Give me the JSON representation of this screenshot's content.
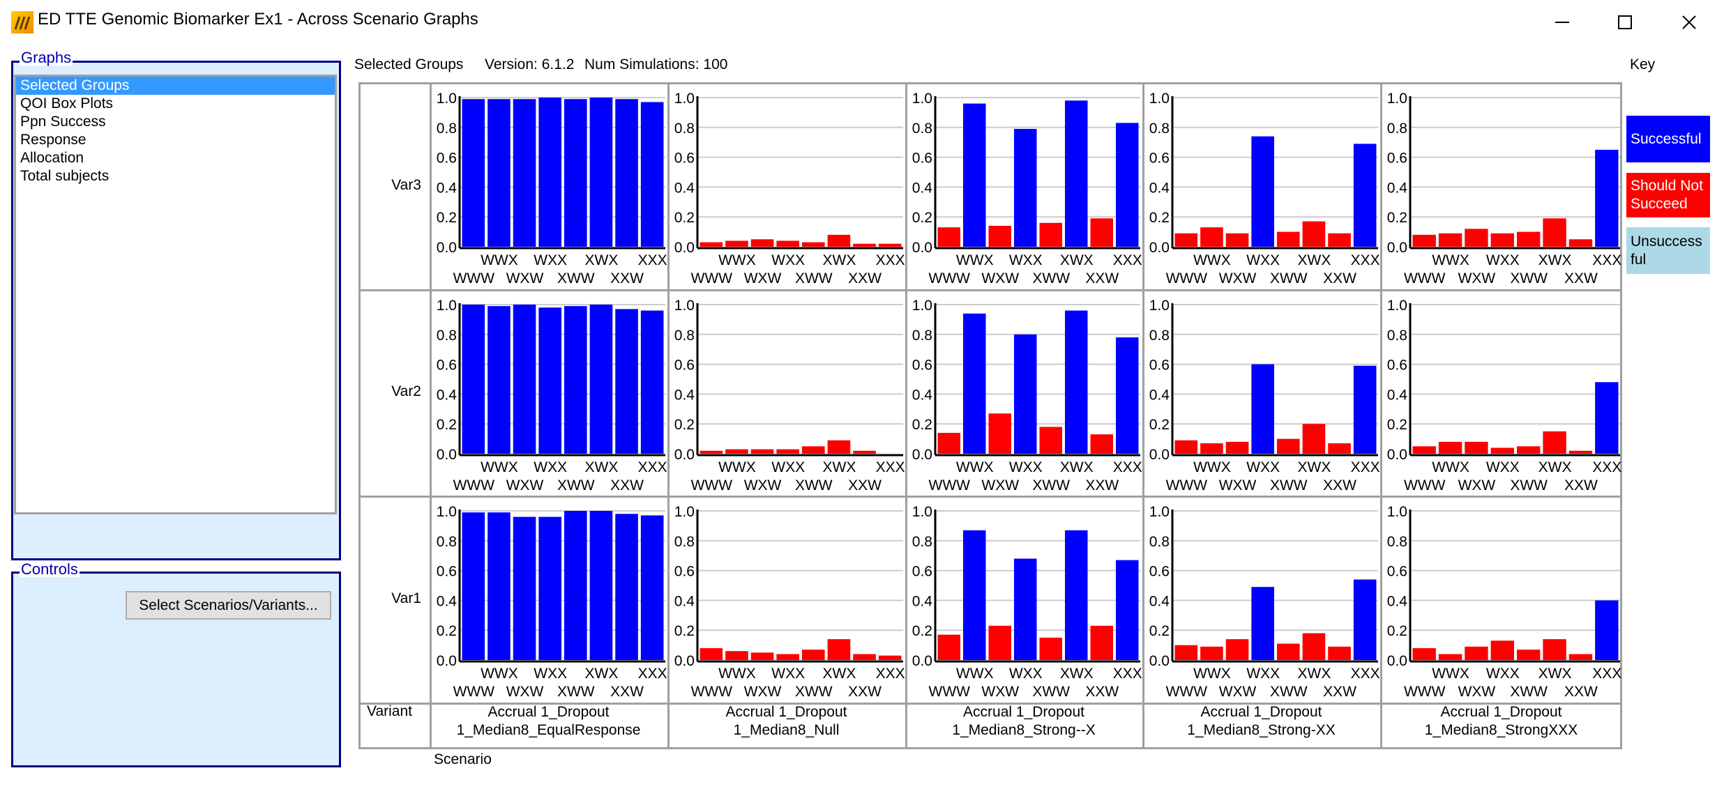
{
  "window": {
    "title": "ED TTE Genomic Biomarker Ex1 - Across Scenario Graphs",
    "icon": "app-logo-icon",
    "controls": [
      "minimize-icon",
      "maximize-icon",
      "close-icon"
    ]
  },
  "graphs_panel": {
    "label": "Graphs",
    "items": [
      {
        "label": "Selected Groups",
        "selected": true
      },
      {
        "label": "QOI Box Plots",
        "selected": false
      },
      {
        "label": "Ppn Success",
        "selected": false
      },
      {
        "label": "Response",
        "selected": false
      },
      {
        "label": "Allocation",
        "selected": false
      },
      {
        "label": "Total subjects",
        "selected": false
      }
    ]
  },
  "controls_panel": {
    "label": "Controls",
    "select_button": "Select Scenarios/Variants..."
  },
  "header": {
    "graph_name": "Selected Groups",
    "version": "Version: 6.1.2",
    "num_sims": "Num Simulations: 100",
    "key_label": "Key"
  },
  "grid": {
    "variant_header": "Variant",
    "scenario_label": "Scenario",
    "rows": [
      "Var3",
      "Var2",
      "Var1"
    ],
    "scenarios": [
      {
        "line1": "Accrual 1_Dropout",
        "line2": "1_Median8_EqualResponse"
      },
      {
        "line1": "Accrual 1_Dropout",
        "line2": "1_Median8_Null"
      },
      {
        "line1": "Accrual 1_Dropout",
        "line2": "1_Median8_Strong--X"
      },
      {
        "line1": "Accrual 1_Dropout",
        "line2": "1_Median8_Strong-XX"
      },
      {
        "line1": "Accrual 1_Dropout",
        "line2": "1_Median8_StrongXXX"
      }
    ]
  },
  "key": {
    "items": [
      {
        "label": "Successful",
        "color": "#0000ff",
        "text_color": "#ffffff"
      },
      {
        "label": "Should Not Succeed",
        "color": "#ff0000",
        "text_color": "#ffffff"
      },
      {
        "label": "Unsuccessful",
        "color": "#add8e6",
        "text_color": "#000000"
      }
    ]
  },
  "chart_data": {
    "type": "bar",
    "categories": [
      "WWW",
      "WWX",
      "WXW",
      "WXX",
      "XWW",
      "XWX",
      "XXW",
      "XXX"
    ],
    "yticks": [
      "0.0",
      "0.2",
      "0.4",
      "0.6",
      "0.8",
      "1.0"
    ],
    "ylim": [
      0,
      1.0
    ],
    "grid": true,
    "colors": {
      "S": "#0000ff",
      "N": "#ff0000",
      "U": "#add8e6"
    },
    "panels": [
      {
        "variant": "Var3",
        "scenario": "1_Median8_EqualResponse",
        "values": [
          0.99,
          0.99,
          0.99,
          1.0,
          0.99,
          1.0,
          0.99,
          0.97
        ],
        "outcome": [
          "S",
          "S",
          "S",
          "S",
          "S",
          "S",
          "S",
          "S"
        ]
      },
      {
        "variant": "Var3",
        "scenario": "1_Median8_Null",
        "values": [
          0.03,
          0.04,
          0.05,
          0.04,
          0.03,
          0.08,
          0.02,
          0.02
        ],
        "outcome": [
          "N",
          "N",
          "N",
          "N",
          "N",
          "N",
          "N",
          "N"
        ]
      },
      {
        "variant": "Var3",
        "scenario": "1_Median8_Strong--X",
        "values": [
          0.13,
          0.96,
          0.14,
          0.79,
          0.16,
          0.98,
          0.19,
          0.83
        ],
        "outcome": [
          "N",
          "S",
          "N",
          "S",
          "N",
          "S",
          "N",
          "S"
        ]
      },
      {
        "variant": "Var3",
        "scenario": "1_Median8_Strong-XX",
        "values": [
          0.09,
          0.13,
          0.09,
          0.74,
          0.1,
          0.17,
          0.09,
          0.69
        ],
        "outcome": [
          "N",
          "N",
          "N",
          "S",
          "N",
          "N",
          "N",
          "S"
        ]
      },
      {
        "variant": "Var3",
        "scenario": "1_Median8_StrongXXX",
        "values": [
          0.08,
          0.09,
          0.12,
          0.09,
          0.1,
          0.19,
          0.05,
          0.65
        ],
        "outcome": [
          "N",
          "N",
          "N",
          "N",
          "N",
          "N",
          "N",
          "S"
        ]
      },
      {
        "variant": "Var2",
        "scenario": "1_Median8_EqualResponse",
        "values": [
          1.0,
          0.99,
          1.0,
          0.98,
          0.99,
          1.0,
          0.97,
          0.96
        ],
        "outcome": [
          "S",
          "S",
          "S",
          "S",
          "S",
          "S",
          "S",
          "S"
        ]
      },
      {
        "variant": "Var2",
        "scenario": "1_Median8_Null",
        "values": [
          0.02,
          0.03,
          0.03,
          0.03,
          0.05,
          0.09,
          0.02,
          0.0
        ],
        "outcome": [
          "N",
          "N",
          "N",
          "N",
          "N",
          "N",
          "N",
          "N"
        ]
      },
      {
        "variant": "Var2",
        "scenario": "1_Median8_Strong--X",
        "values": [
          0.14,
          0.94,
          0.27,
          0.8,
          0.18,
          0.96,
          0.13,
          0.78
        ],
        "outcome": [
          "N",
          "S",
          "N",
          "S",
          "N",
          "S",
          "N",
          "S"
        ]
      },
      {
        "variant": "Var2",
        "scenario": "1_Median8_Strong-XX",
        "values": [
          0.09,
          0.07,
          0.08,
          0.6,
          0.1,
          0.2,
          0.07,
          0.59
        ],
        "outcome": [
          "N",
          "N",
          "N",
          "S",
          "N",
          "N",
          "N",
          "S"
        ]
      },
      {
        "variant": "Var2",
        "scenario": "1_Median8_StrongXXX",
        "values": [
          0.05,
          0.08,
          0.08,
          0.04,
          0.05,
          0.15,
          0.02,
          0.48
        ],
        "outcome": [
          "N",
          "N",
          "N",
          "N",
          "N",
          "N",
          "N",
          "S"
        ]
      },
      {
        "variant": "Var1",
        "scenario": "1_Median8_EqualResponse",
        "values": [
          0.99,
          0.99,
          0.96,
          0.96,
          1.0,
          1.0,
          0.98,
          0.97
        ],
        "outcome": [
          "S",
          "S",
          "S",
          "S",
          "S",
          "S",
          "S",
          "S"
        ]
      },
      {
        "variant": "Var1",
        "scenario": "1_Median8_Null",
        "values": [
          0.08,
          0.06,
          0.05,
          0.04,
          0.07,
          0.14,
          0.04,
          0.03
        ],
        "outcome": [
          "N",
          "N",
          "N",
          "N",
          "N",
          "N",
          "N",
          "N"
        ]
      },
      {
        "variant": "Var1",
        "scenario": "1_Median8_Strong--X",
        "values": [
          0.17,
          0.87,
          0.23,
          0.68,
          0.15,
          0.87,
          0.23,
          0.67
        ],
        "outcome": [
          "N",
          "S",
          "N",
          "S",
          "N",
          "S",
          "N",
          "S"
        ]
      },
      {
        "variant": "Var1",
        "scenario": "1_Median8_Strong-XX",
        "values": [
          0.1,
          0.09,
          0.14,
          0.49,
          0.11,
          0.18,
          0.09,
          0.54
        ],
        "outcome": [
          "N",
          "N",
          "N",
          "S",
          "N",
          "N",
          "N",
          "S"
        ]
      },
      {
        "variant": "Var1",
        "scenario": "1_Median8_StrongXXX",
        "values": [
          0.08,
          0.04,
          0.09,
          0.13,
          0.07,
          0.14,
          0.04,
          0.4
        ],
        "outcome": [
          "N",
          "N",
          "N",
          "N",
          "N",
          "N",
          "N",
          "S"
        ]
      }
    ]
  }
}
